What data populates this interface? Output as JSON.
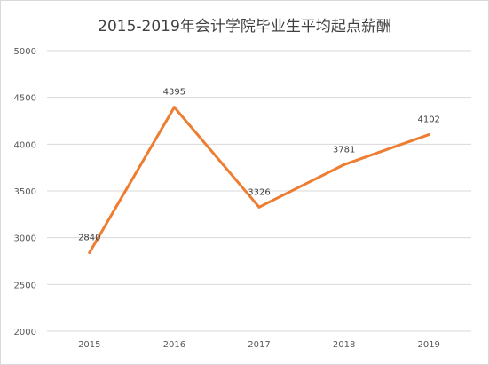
{
  "chart_data": {
    "type": "line",
    "title": "2015-2019年会计学院毕业生平均起点薪酬",
    "xlabel": "",
    "ylabel": "",
    "categories": [
      "2015",
      "2016",
      "2017",
      "2018",
      "2019"
    ],
    "series": [
      {
        "values": [
          2840,
          4395,
          3326,
          3781,
          4102
        ],
        "color": "#ED7D31"
      }
    ],
    "data_labels": [
      "2840",
      "4395",
      "3326",
      "3781",
      "4102"
    ],
    "yticks": [
      "2000",
      "2500",
      "3000",
      "3500",
      "4000",
      "4500",
      "5000"
    ],
    "ylim": [
      2000,
      5000
    ],
    "grid": true,
    "gridColor": "#d9d9d9",
    "legend": "none"
  }
}
